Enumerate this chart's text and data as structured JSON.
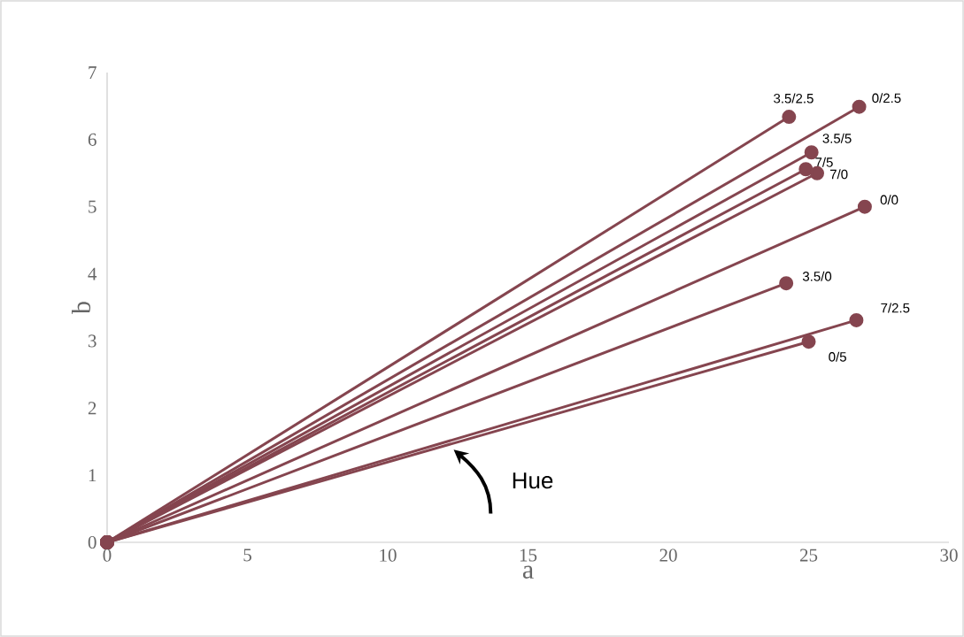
{
  "chart_data": {
    "type": "line",
    "xlabel": "a",
    "ylabel": "b",
    "xlim": [
      0,
      30
    ],
    "ylim": [
      0,
      7
    ],
    "xticks": [
      0,
      5,
      10,
      15,
      20,
      25,
      30
    ],
    "yticks": [
      0,
      1,
      2,
      3,
      4,
      5,
      6,
      7
    ],
    "marker": "circle",
    "line_style": "solid",
    "annotations": [
      "Hue"
    ],
    "series": [
      {
        "name": "3.5/2.5",
        "color": "#85454f",
        "x": [
          0,
          24.3
        ],
        "values": [
          0,
          6.34
        ]
      },
      {
        "name": "0/2.5",
        "color": "#85454f",
        "x": [
          0,
          26.8
        ],
        "values": [
          0,
          6.49
        ]
      },
      {
        "name": "3.5/5",
        "color": "#85454f",
        "x": [
          0,
          25.1
        ],
        "values": [
          0,
          5.81
        ]
      },
      {
        "name": "7/5",
        "color": "#85454f",
        "x": [
          0,
          24.9
        ],
        "values": [
          0,
          5.56
        ]
      },
      {
        "name": "7/0",
        "color": "#85454f",
        "x": [
          0,
          25.3
        ],
        "values": [
          0,
          5.5
        ]
      },
      {
        "name": "0/0",
        "color": "#85454f",
        "x": [
          0,
          27.0
        ],
        "values": [
          0,
          5.0
        ]
      },
      {
        "name": "3.5/0",
        "color": "#85454f",
        "x": [
          0,
          24.2
        ],
        "values": [
          0,
          3.86
        ]
      },
      {
        "name": "7/2.5",
        "color": "#85454f",
        "x": [
          0,
          26.7
        ],
        "values": [
          0,
          3.31
        ]
      },
      {
        "name": "0/5",
        "color": "#85454f",
        "x": [
          0,
          25.0
        ],
        "values": [
          0,
          2.99
        ]
      }
    ]
  }
}
